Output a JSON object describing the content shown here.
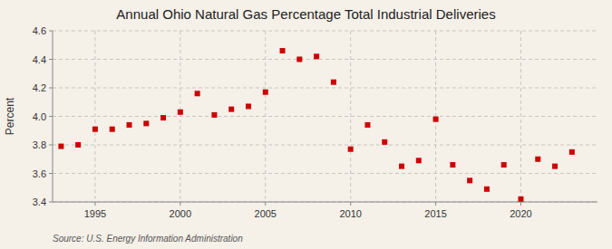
{
  "chart_data": {
    "type": "scatter",
    "title": "Annual Ohio Natural Gas Percentage Total Industrial Deliveries",
    "ylabel": "Percent",
    "annotations": [
      "Source: U.S. Energy Information Administration"
    ],
    "x": [
      1993,
      1994,
      1995,
      1996,
      1997,
      1998,
      1999,
      2000,
      2001,
      2002,
      2003,
      2004,
      2005,
      2006,
      2007,
      2008,
      2009,
      2010,
      2011,
      2012,
      2013,
      2014,
      2015,
      2016,
      2017,
      2018,
      2019,
      2020,
      2021,
      2022,
      2023
    ],
    "values": [
      3.79,
      3.8,
      3.91,
      3.91,
      3.94,
      3.95,
      3.99,
      4.03,
      4.16,
      4.01,
      4.05,
      4.07,
      4.17,
      4.46,
      4.4,
      4.42,
      4.24,
      3.77,
      3.94,
      3.82,
      3.65,
      3.69,
      3.98,
      3.66,
      3.55,
      3.49,
      3.66,
      3.42,
      3.7,
      3.65,
      3.75
    ],
    "color": "#cc0000",
    "marker": "square",
    "ylim": [
      3.4,
      4.6
    ],
    "yticks": [
      3.4,
      3.6,
      3.8,
      {
        "value": 4.0,
        "label": "4.0"
      },
      4.2,
      4.4,
      4.6
    ],
    "xlim": [
      1992.5,
      2024.5
    ],
    "xticks": [
      1995,
      2000,
      2005,
      2010,
      2015,
      2020
    ],
    "grid": true
  }
}
